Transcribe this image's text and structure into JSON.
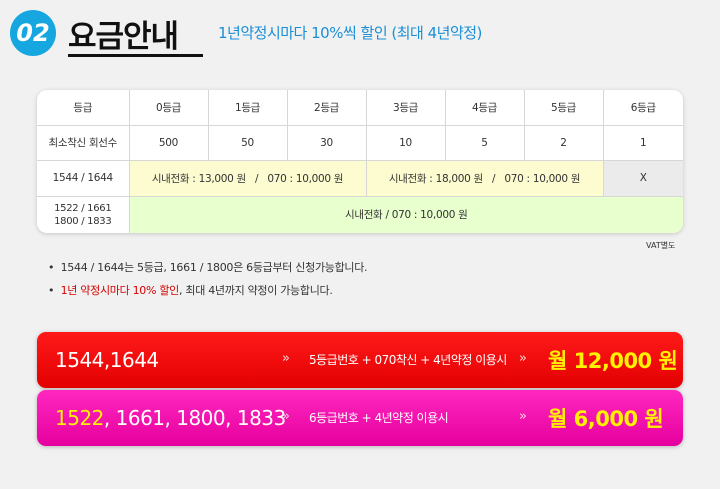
{
  "header": {
    "badge": "02",
    "title": "요금안내",
    "subtitle": "1년약정시마다 10%씩 할인 (최대 4년약정)"
  },
  "table": {
    "headers": [
      "등급",
      "0등급",
      "1등급",
      "2등급",
      "3등급",
      "4등급",
      "5등급",
      "6등급"
    ],
    "min_row": {
      "label": "최소착신 회선수",
      "values": [
        "500",
        "50",
        "30",
        "10",
        "5",
        "2",
        "1"
      ]
    },
    "row_1544": {
      "label": "1544 / 1644",
      "cell_a": "시내전화 : 13,000 원   /   070 : 10,000 원",
      "cell_b": "시내전화 : 18,000 원   /   070 : 10,000 원",
      "cell_c": "X"
    },
    "row_1522": {
      "label_line1": "1522 / 1661",
      "label_line2": "1800 / 1833",
      "cell": "시내전화 / 070 : 10,000 원"
    },
    "vat_note": "VAT별도"
  },
  "notes": {
    "line1": "1544 / 1644는 5등급, 1661 / 1800은 6등급부터 신청가능합니다.",
    "line2_red": "1년 약정시마다 10% 할인",
    "line2_rest": ", 최대 4년까지 약정이 가능합니다."
  },
  "bars": [
    {
      "code": "1544,1644",
      "arrow": "»",
      "desc": "5등급번호 + 070착신 + 4년약정 이용시",
      "price": "월 12,000 원"
    },
    {
      "code_highlight": "1522",
      "code_rest": ", 1661, 1800, 1833",
      "arrow": "»",
      "desc": "6등급번호 + 4년약정 이용시",
      "price": "월 6,000 원"
    }
  ],
  "colors": {
    "badge": "#16a7e0",
    "subtitle": "#1a8fd6",
    "bar1": "#f00000",
    "bar2": "#f414b4",
    "price": "#fff100",
    "highlight_red": "#d40000"
  }
}
